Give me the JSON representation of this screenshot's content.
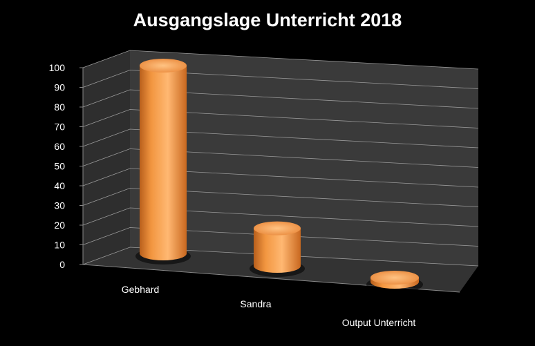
{
  "chart_data": {
    "type": "bar",
    "title": "Ausgangslage Unterricht 2018",
    "categories": [
      "Gebhard",
      "Sandra",
      "Output Unterricht"
    ],
    "values": [
      100,
      20,
      0
    ],
    "ylim": [
      0,
      100
    ],
    "yticks": [
      "0",
      "10",
      "20",
      "30",
      "40",
      "50",
      "60",
      "70",
      "80",
      "90",
      "100"
    ],
    "xlabel": "",
    "ylabel": "",
    "grid": true,
    "legend": "none",
    "colors": {
      "bar": "#f39a45",
      "bar_dark": "#c9681f",
      "bar_light": "#ffc383",
      "wall": "#3a3a3a",
      "floor": "#333333",
      "grid": "#9a9a9a",
      "background": "#000000"
    }
  }
}
